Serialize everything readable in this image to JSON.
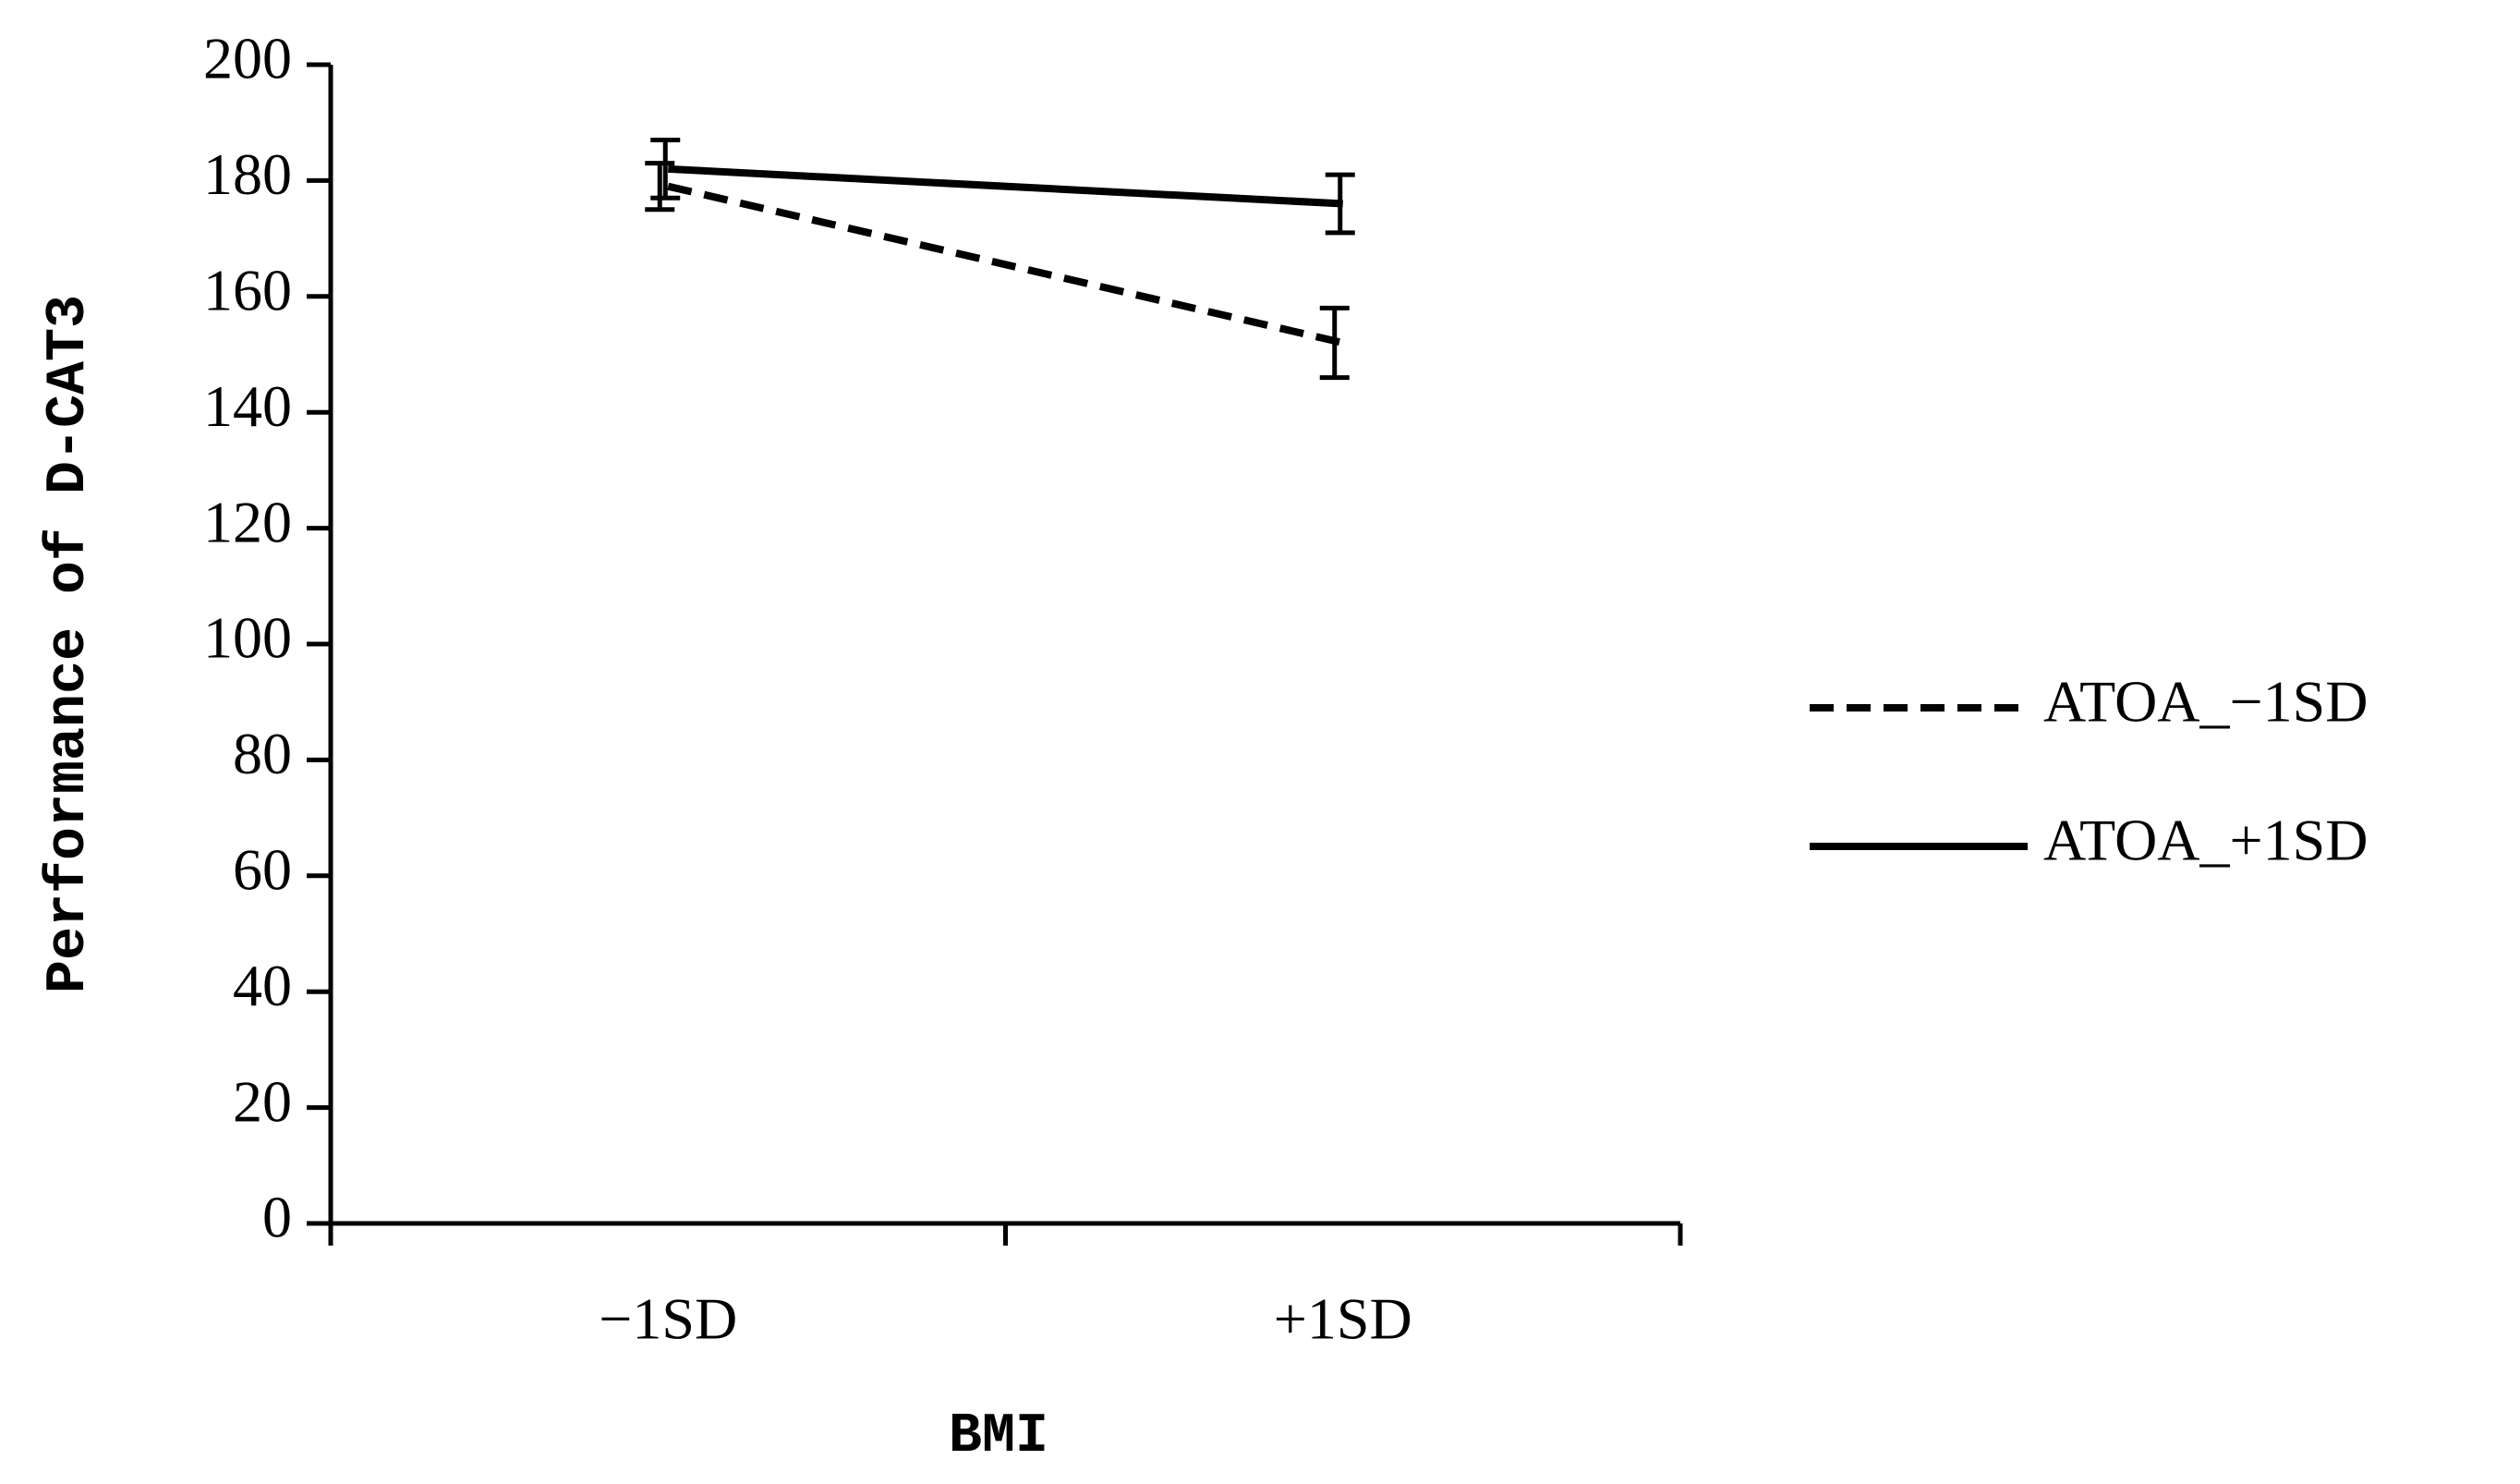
{
  "chart_data": {
    "type": "line",
    "x_label": "BMI",
    "y_label": "Performance of D-CAT3",
    "categories": [
      "−1SD",
      "+1SD"
    ],
    "series": [
      {
        "name": "ATOA_−1SD",
        "color": "#000000",
        "dash": "dashed",
        "values": [
          179,
          152
        ],
        "errors": [
          4,
          6
        ]
      },
      {
        "name": "ATOA_+1SD",
        "color": "#000000",
        "dash": "solid",
        "values": [
          182,
          176
        ],
        "errors": [
          5,
          5
        ]
      }
    ],
    "ylim": [
      0,
      200
    ],
    "yticks": [
      0,
      20,
      40,
      60,
      80,
      100,
      120,
      140,
      160,
      180,
      200
    ],
    "grid": false,
    "legend": "right"
  }
}
